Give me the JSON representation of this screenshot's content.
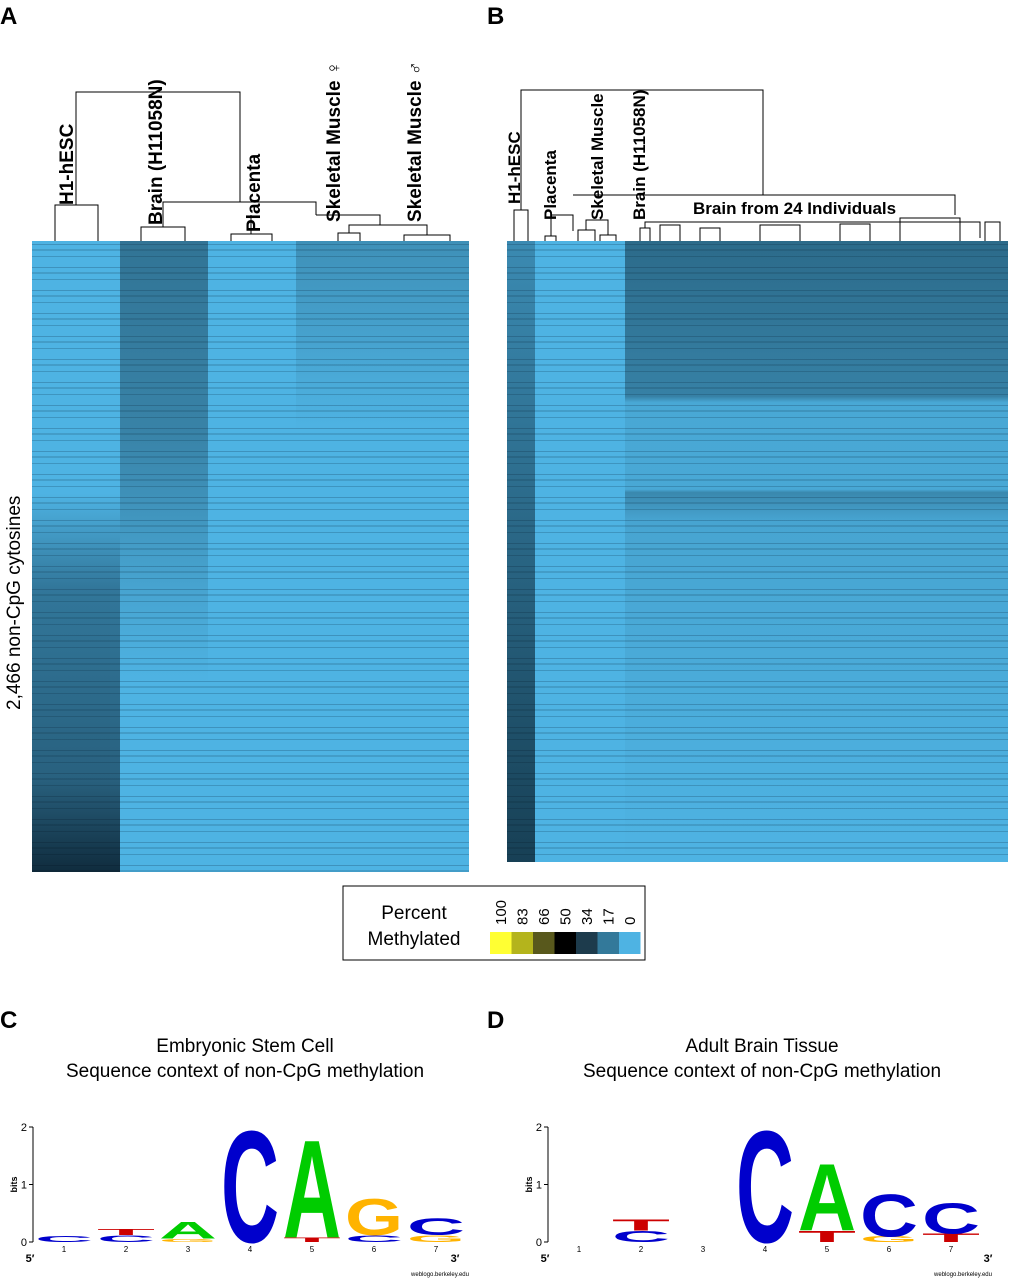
{
  "panels": [
    {
      "letter": "A",
      "labels": [
        "H1-hESC",
        "Brain (H11058N)",
        "Placenta",
        "Skeletal Muscle ♀",
        "Skeletal Muscle ♂"
      ],
      "y_label": "2,466  non-CpG cytosines"
    },
    {
      "letter": "B",
      "labels": [
        "H1-hESC",
        "Placenta",
        "Skeletal Muscle",
        "Brain (H11058N)"
      ],
      "group_label": "Brain from 24 Individuals"
    }
  ],
  "legend": {
    "title": [
      "Percent",
      "Methylated"
    ],
    "scale": [
      {
        "label": "100",
        "color": "#ffff33"
      },
      {
        "label": "83",
        "color": "#b4b41c"
      },
      {
        "label": "66",
        "color": "#58581c"
      },
      {
        "label": "50",
        "color": "#000000"
      },
      {
        "label": "34",
        "color": "#1d3b4c"
      },
      {
        "label": "17",
        "color": "#33799a"
      },
      {
        "label": "0",
        "color": "#4eb3e3"
      }
    ]
  },
  "logos": [
    {
      "letter": "C",
      "title": [
        "Embryonic Stem Cell",
        "Sequence context of non-CpG methylation"
      ],
      "y_label": "bits",
      "yticks": [
        0,
        1,
        2
      ],
      "positions": [
        1,
        2,
        3,
        4,
        5,
        6,
        7
      ],
      "ends": [
        "5′",
        "3′"
      ],
      "credit": "weblogo.berkeley.edu",
      "letters": [
        {
          "pos": 1,
          "char": "C",
          "bits": 0.1
        },
        {
          "pos": 2,
          "char": "C",
          "bits": 0.12
        },
        {
          "pos": 2,
          "char": "T",
          "bits": 0.1
        },
        {
          "pos": 3,
          "char": "G",
          "bits": 0.06
        },
        {
          "pos": 3,
          "char": "A",
          "bits": 0.3
        },
        {
          "pos": 4,
          "char": "C",
          "bits": 2
        },
        {
          "pos": 5,
          "char": "T",
          "bits": 0.08
        },
        {
          "pos": 5,
          "char": "A",
          "bits": 1.75
        },
        {
          "pos": 6,
          "char": "C",
          "bits": 0.12
        },
        {
          "pos": 6,
          "char": "G",
          "bits": 0.65
        },
        {
          "pos": 7,
          "char": "G",
          "bits": 0.12
        },
        {
          "pos": 7,
          "char": "C",
          "bits": 0.3
        }
      ]
    },
    {
      "letter": "D",
      "title": [
        "Adult Brain Tissue",
        "Sequence context of non-CpG methylation"
      ],
      "y_label": "bits",
      "yticks": [
        0,
        1,
        2
      ],
      "positions": [
        1,
        2,
        3,
        4,
        5,
        6,
        7
      ],
      "ends": [
        "5′",
        "3′"
      ],
      "credit": "weblogo.berkeley.edu",
      "letters": [
        {
          "pos": 2,
          "char": "C",
          "bits": 0.2
        },
        {
          "pos": 2,
          "char": "T",
          "bits": 0.2
        },
        {
          "pos": 4,
          "char": "C",
          "bits": 2
        },
        {
          "pos": 5,
          "char": "T",
          "bits": 0.2
        },
        {
          "pos": 5,
          "char": "A",
          "bits": 1.2
        },
        {
          "pos": 6,
          "char": "G",
          "bits": 0.1
        },
        {
          "pos": 6,
          "char": "C",
          "bits": 0.75
        },
        {
          "pos": 7,
          "char": "T",
          "bits": 0.15
        },
        {
          "pos": 7,
          "char": "C",
          "bits": 0.55
        }
      ]
    }
  ]
}
